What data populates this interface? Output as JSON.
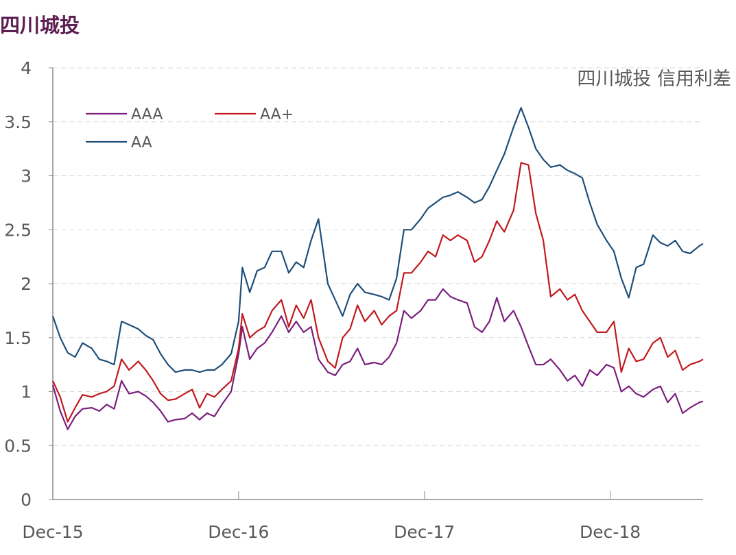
{
  "header": {
    "title": "四川城投"
  },
  "chart_data": {
    "type": "line",
    "title": "四川城投 信用利差",
    "xlabel": "",
    "ylabel": "",
    "ylim": [
      0,
      4
    ],
    "yticks": [
      "0",
      "0.5",
      "1",
      "1.5",
      "2",
      "2.5",
      "3",
      "3.5",
      "4"
    ],
    "x_tick_labels": [
      "Dec-15",
      "Dec-16",
      "Dec-17",
      "Dec-18"
    ],
    "x_tick_positions": [
      2015.92,
      2016.92,
      2017.92,
      2018.92
    ],
    "xlim": [
      2015.92,
      2019.42
    ],
    "grid": "horizontal-dashed",
    "legend": "top-left",
    "series": [
      {
        "name": "AAA",
        "color": "#7b1f7e",
        "points": [
          [
            2015.92,
            1.06
          ],
          [
            2015.96,
            0.82
          ],
          [
            2016.0,
            0.65
          ],
          [
            2016.04,
            0.77
          ],
          [
            2016.08,
            0.84
          ],
          [
            2016.13,
            0.85
          ],
          [
            2016.17,
            0.82
          ],
          [
            2016.21,
            0.88
          ],
          [
            2016.25,
            0.84
          ],
          [
            2016.29,
            1.1
          ],
          [
            2016.33,
            0.98
          ],
          [
            2016.38,
            1.0
          ],
          [
            2016.42,
            0.96
          ],
          [
            2016.46,
            0.9
          ],
          [
            2016.5,
            0.82
          ],
          [
            2016.54,
            0.72
          ],
          [
            2016.58,
            0.74
          ],
          [
            2016.63,
            0.75
          ],
          [
            2016.67,
            0.8
          ],
          [
            2016.71,
            0.74
          ],
          [
            2016.75,
            0.8
          ],
          [
            2016.79,
            0.77
          ],
          [
            2016.83,
            0.88
          ],
          [
            2016.88,
            1.0
          ],
          [
            2016.92,
            1.35
          ],
          [
            2016.94,
            1.6
          ],
          [
            2016.98,
            1.3
          ],
          [
            2017.02,
            1.4
          ],
          [
            2017.06,
            1.45
          ],
          [
            2017.1,
            1.55
          ],
          [
            2017.15,
            1.7
          ],
          [
            2017.19,
            1.55
          ],
          [
            2017.23,
            1.65
          ],
          [
            2017.27,
            1.55
          ],
          [
            2017.31,
            1.6
          ],
          [
            2017.35,
            1.3
          ],
          [
            2017.4,
            1.18
          ],
          [
            2017.44,
            1.15
          ],
          [
            2017.48,
            1.25
          ],
          [
            2017.52,
            1.28
          ],
          [
            2017.56,
            1.4
          ],
          [
            2017.6,
            1.25
          ],
          [
            2017.65,
            1.27
          ],
          [
            2017.69,
            1.25
          ],
          [
            2017.73,
            1.32
          ],
          [
            2017.77,
            1.45
          ],
          [
            2017.81,
            1.75
          ],
          [
            2017.85,
            1.68
          ],
          [
            2017.9,
            1.75
          ],
          [
            2017.94,
            1.85
          ],
          [
            2017.98,
            1.85
          ],
          [
            2018.02,
            1.95
          ],
          [
            2018.06,
            1.88
          ],
          [
            2018.1,
            1.85
          ],
          [
            2018.15,
            1.82
          ],
          [
            2018.19,
            1.6
          ],
          [
            2018.23,
            1.55
          ],
          [
            2018.27,
            1.65
          ],
          [
            2018.31,
            1.87
          ],
          [
            2018.35,
            1.65
          ],
          [
            2018.4,
            1.75
          ],
          [
            2018.44,
            1.6
          ],
          [
            2018.48,
            1.42
          ],
          [
            2018.52,
            1.25
          ],
          [
            2018.56,
            1.25
          ],
          [
            2018.6,
            1.3
          ],
          [
            2018.65,
            1.2
          ],
          [
            2018.69,
            1.1
          ],
          [
            2018.73,
            1.15
          ],
          [
            2018.77,
            1.05
          ],
          [
            2018.81,
            1.2
          ],
          [
            2018.85,
            1.15
          ],
          [
            2018.9,
            1.25
          ],
          [
            2018.94,
            1.22
          ],
          [
            2018.98,
            1.0
          ],
          [
            2019.02,
            1.05
          ],
          [
            2019.06,
            0.98
          ],
          [
            2019.1,
            0.95
          ],
          [
            2019.15,
            1.02
          ],
          [
            2019.19,
            1.05
          ],
          [
            2019.23,
            0.9
          ],
          [
            2019.27,
            0.98
          ],
          [
            2019.31,
            0.8
          ],
          [
            2019.35,
            0.85
          ],
          [
            2019.4,
            0.9
          ],
          [
            2019.42,
            0.91
          ]
        ]
      },
      {
        "name": "AA+",
        "color": "#c0191e",
        "points": [
          [
            2015.92,
            1.1
          ],
          [
            2015.96,
            0.95
          ],
          [
            2016.0,
            0.72
          ],
          [
            2016.04,
            0.85
          ],
          [
            2016.08,
            0.97
          ],
          [
            2016.13,
            0.95
          ],
          [
            2016.17,
            0.98
          ],
          [
            2016.21,
            1.0
          ],
          [
            2016.25,
            1.05
          ],
          [
            2016.29,
            1.3
          ],
          [
            2016.33,
            1.2
          ],
          [
            2016.38,
            1.28
          ],
          [
            2016.42,
            1.2
          ],
          [
            2016.46,
            1.1
          ],
          [
            2016.5,
            0.98
          ],
          [
            2016.54,
            0.92
          ],
          [
            2016.58,
            0.93
          ],
          [
            2016.63,
            0.98
          ],
          [
            2016.67,
            1.02
          ],
          [
            2016.71,
            0.85
          ],
          [
            2016.75,
            0.98
          ],
          [
            2016.79,
            0.95
          ],
          [
            2016.83,
            1.02
          ],
          [
            2016.88,
            1.1
          ],
          [
            2016.92,
            1.4
          ],
          [
            2016.94,
            1.72
          ],
          [
            2016.98,
            1.5
          ],
          [
            2017.02,
            1.56
          ],
          [
            2017.06,
            1.6
          ],
          [
            2017.1,
            1.75
          ],
          [
            2017.15,
            1.85
          ],
          [
            2017.19,
            1.6
          ],
          [
            2017.23,
            1.8
          ],
          [
            2017.27,
            1.68
          ],
          [
            2017.31,
            1.85
          ],
          [
            2017.35,
            1.5
          ],
          [
            2017.4,
            1.28
          ],
          [
            2017.44,
            1.22
          ],
          [
            2017.48,
            1.5
          ],
          [
            2017.52,
            1.58
          ],
          [
            2017.56,
            1.8
          ],
          [
            2017.6,
            1.65
          ],
          [
            2017.65,
            1.75
          ],
          [
            2017.69,
            1.62
          ],
          [
            2017.73,
            1.7
          ],
          [
            2017.77,
            1.75
          ],
          [
            2017.81,
            2.1
          ],
          [
            2017.85,
            2.1
          ],
          [
            2017.9,
            2.2
          ],
          [
            2017.94,
            2.3
          ],
          [
            2017.98,
            2.25
          ],
          [
            2018.02,
            2.45
          ],
          [
            2018.06,
            2.4
          ],
          [
            2018.1,
            2.45
          ],
          [
            2018.15,
            2.4
          ],
          [
            2018.19,
            2.2
          ],
          [
            2018.23,
            2.25
          ],
          [
            2018.27,
            2.4
          ],
          [
            2018.31,
            2.58
          ],
          [
            2018.35,
            2.48
          ],
          [
            2018.4,
            2.68
          ],
          [
            2018.44,
            3.12
          ],
          [
            2018.48,
            3.1
          ],
          [
            2018.52,
            2.65
          ],
          [
            2018.56,
            2.4
          ],
          [
            2018.6,
            1.88
          ],
          [
            2018.65,
            1.95
          ],
          [
            2018.69,
            1.85
          ],
          [
            2018.73,
            1.9
          ],
          [
            2018.77,
            1.75
          ],
          [
            2018.81,
            1.65
          ],
          [
            2018.85,
            1.55
          ],
          [
            2018.9,
            1.55
          ],
          [
            2018.94,
            1.65
          ],
          [
            2018.98,
            1.18
          ],
          [
            2019.02,
            1.4
          ],
          [
            2019.06,
            1.28
          ],
          [
            2019.1,
            1.3
          ],
          [
            2019.15,
            1.45
          ],
          [
            2019.19,
            1.5
          ],
          [
            2019.23,
            1.32
          ],
          [
            2019.27,
            1.38
          ],
          [
            2019.31,
            1.2
          ],
          [
            2019.35,
            1.25
          ],
          [
            2019.4,
            1.28
          ],
          [
            2019.42,
            1.3
          ]
        ]
      },
      {
        "name": "AA",
        "color": "#1f4e79",
        "points": [
          [
            2015.92,
            1.7
          ],
          [
            2015.96,
            1.5
          ],
          [
            2016.0,
            1.36
          ],
          [
            2016.04,
            1.32
          ],
          [
            2016.08,
            1.45
          ],
          [
            2016.13,
            1.4
          ],
          [
            2016.17,
            1.3
          ],
          [
            2016.21,
            1.28
          ],
          [
            2016.25,
            1.25
          ],
          [
            2016.29,
            1.65
          ],
          [
            2016.33,
            1.62
          ],
          [
            2016.38,
            1.58
          ],
          [
            2016.42,
            1.52
          ],
          [
            2016.46,
            1.48
          ],
          [
            2016.5,
            1.35
          ],
          [
            2016.54,
            1.25
          ],
          [
            2016.58,
            1.18
          ],
          [
            2016.63,
            1.2
          ],
          [
            2016.67,
            1.2
          ],
          [
            2016.71,
            1.18
          ],
          [
            2016.75,
            1.2
          ],
          [
            2016.79,
            1.2
          ],
          [
            2016.83,
            1.25
          ],
          [
            2016.88,
            1.35
          ],
          [
            2016.92,
            1.65
          ],
          [
            2016.94,
            2.15
          ],
          [
            2016.98,
            1.92
          ],
          [
            2017.02,
            2.12
          ],
          [
            2017.06,
            2.15
          ],
          [
            2017.1,
            2.3
          ],
          [
            2017.15,
            2.3
          ],
          [
            2017.19,
            2.1
          ],
          [
            2017.23,
            2.2
          ],
          [
            2017.27,
            2.15
          ],
          [
            2017.31,
            2.4
          ],
          [
            2017.35,
            2.6
          ],
          [
            2017.4,
            2.0
          ],
          [
            2017.44,
            1.85
          ],
          [
            2017.48,
            1.7
          ],
          [
            2017.52,
            1.9
          ],
          [
            2017.56,
            2.0
          ],
          [
            2017.6,
            1.92
          ],
          [
            2017.65,
            1.9
          ],
          [
            2017.69,
            1.88
          ],
          [
            2017.73,
            1.85
          ],
          [
            2017.77,
            2.05
          ],
          [
            2017.81,
            2.5
          ],
          [
            2017.85,
            2.5
          ],
          [
            2017.9,
            2.6
          ],
          [
            2017.94,
            2.7
          ],
          [
            2017.98,
            2.75
          ],
          [
            2018.02,
            2.8
          ],
          [
            2018.06,
            2.82
          ],
          [
            2018.1,
            2.85
          ],
          [
            2018.15,
            2.8
          ],
          [
            2018.19,
            2.75
          ],
          [
            2018.23,
            2.78
          ],
          [
            2018.27,
            2.9
          ],
          [
            2018.31,
            3.05
          ],
          [
            2018.35,
            3.2
          ],
          [
            2018.4,
            3.45
          ],
          [
            2018.44,
            3.63
          ],
          [
            2018.48,
            3.45
          ],
          [
            2018.52,
            3.25
          ],
          [
            2018.56,
            3.15
          ],
          [
            2018.6,
            3.08
          ],
          [
            2018.65,
            3.1
          ],
          [
            2018.69,
            3.05
          ],
          [
            2018.73,
            3.02
          ],
          [
            2018.77,
            2.98
          ],
          [
            2018.81,
            2.75
          ],
          [
            2018.85,
            2.55
          ],
          [
            2018.9,
            2.4
          ],
          [
            2018.94,
            2.3
          ],
          [
            2018.98,
            2.05
          ],
          [
            2019.02,
            1.87
          ],
          [
            2019.06,
            2.15
          ],
          [
            2019.1,
            2.18
          ],
          [
            2019.15,
            2.45
          ],
          [
            2019.19,
            2.38
          ],
          [
            2019.23,
            2.35
          ],
          [
            2019.27,
            2.4
          ],
          [
            2019.31,
            2.3
          ],
          [
            2019.35,
            2.28
          ],
          [
            2019.4,
            2.35
          ],
          [
            2019.42,
            2.37
          ]
        ]
      }
    ]
  }
}
